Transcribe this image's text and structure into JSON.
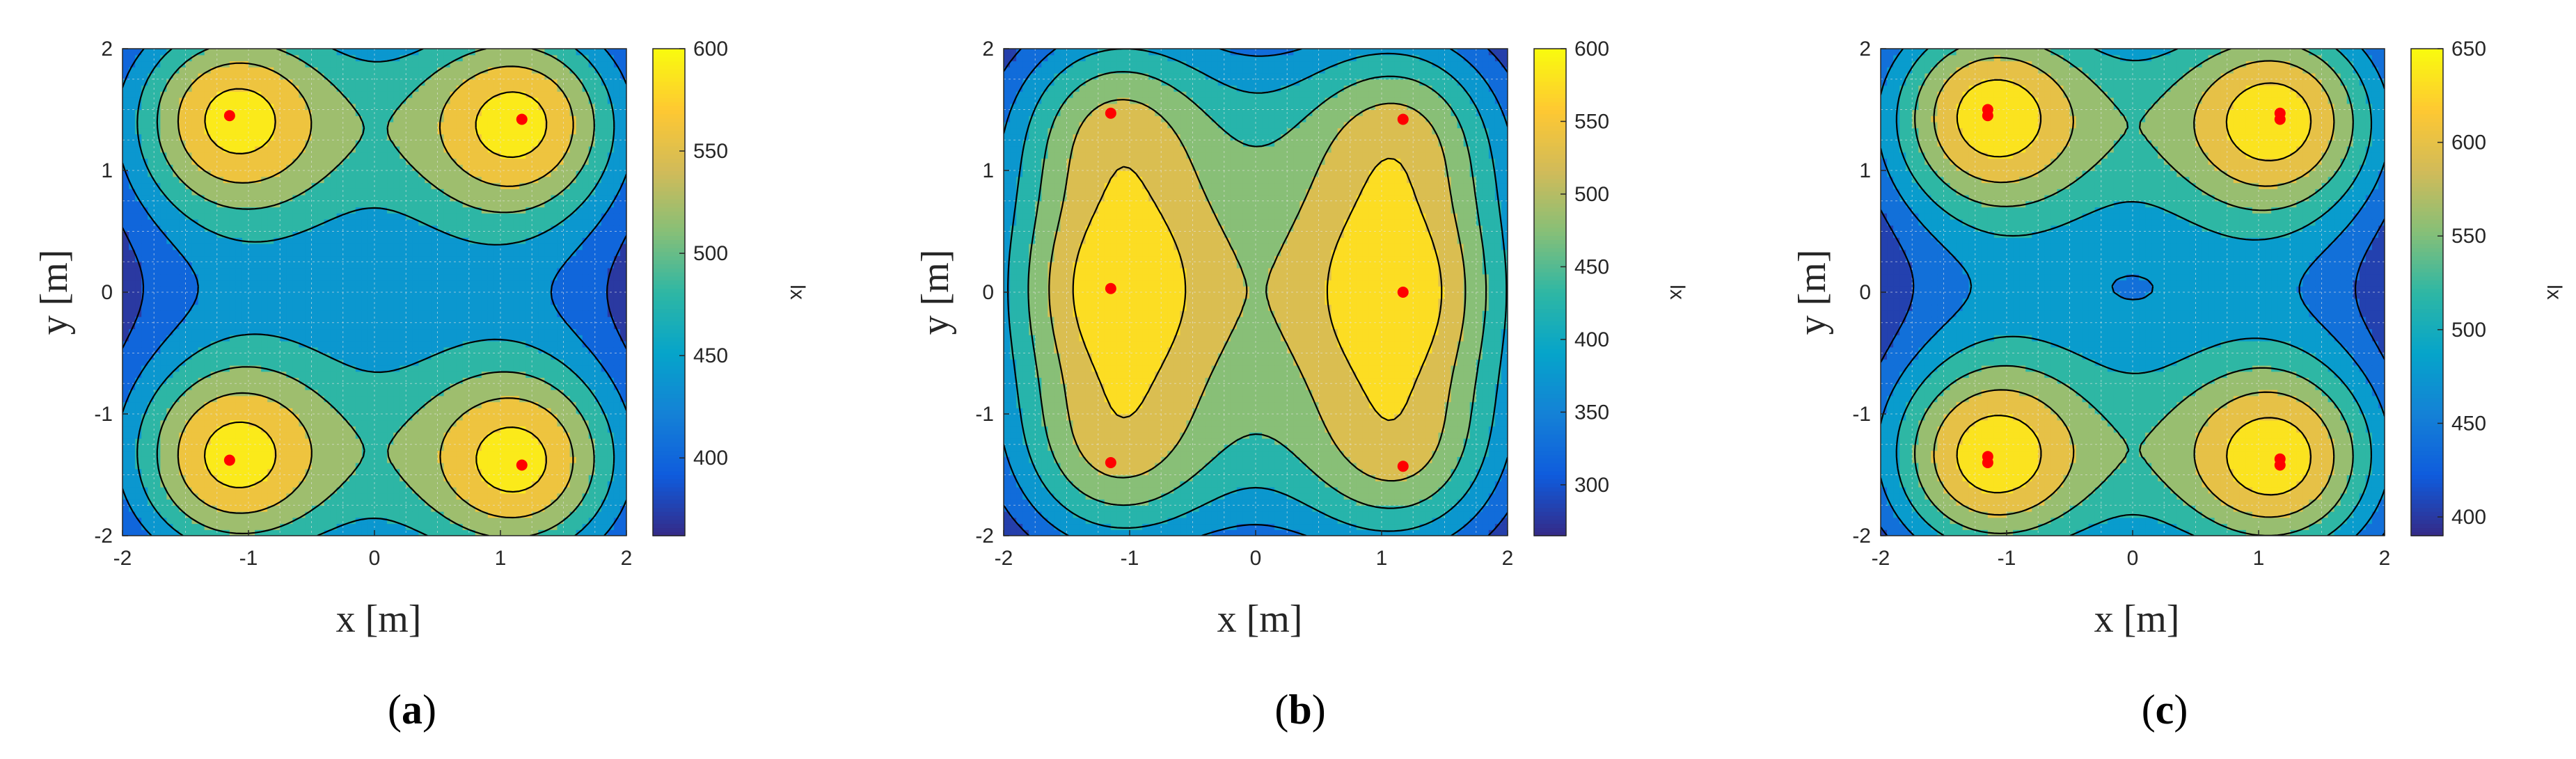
{
  "chart_data": [
    {
      "type": "heatmap",
      "caption": "a",
      "xlabel": "x [m]",
      "ylabel": "y [m]",
      "xlim": [
        -2,
        2
      ],
      "ylim": [
        -2,
        2
      ],
      "xticks": [
        "-2",
        "-1",
        "0",
        "1",
        "2"
      ],
      "yticks": [
        "-2",
        "-1",
        "0",
        "1",
        "2"
      ],
      "grid": true,
      "colorbar": {
        "label": "lx",
        "range": [
          362,
          600
        ],
        "ticks": [
          400,
          450,
          500,
          550,
          600
        ]
      },
      "light_sources": [
        [
          -1.15,
          1.45
        ],
        [
          1.17,
          1.42
        ],
        [
          -1.15,
          -1.38
        ],
        [
          1.17,
          -1.42
        ]
      ],
      "contour_levels": [
        380,
        420,
        460,
        500,
        540,
        580
      ]
    },
    {
      "type": "heatmap",
      "caption": "b",
      "xlabel": "x [m]",
      "ylabel": "y [m]",
      "xlim": [
        -2,
        2
      ],
      "ylim": [
        -2,
        2
      ],
      "xticks": [
        "-2",
        "-1",
        "0",
        "1",
        "2"
      ],
      "yticks": [
        "-2",
        "-1",
        "0",
        "1",
        "2"
      ],
      "grid": true,
      "colorbar": {
        "label": "lx",
        "range": [
          265,
          600
        ],
        "ticks": [
          300,
          350,
          400,
          450,
          500,
          550,
          600
        ]
      },
      "light_sources": [
        [
          -1.15,
          1.47
        ],
        [
          1.17,
          1.42
        ],
        [
          -1.15,
          0.03
        ],
        [
          1.17,
          0.0
        ],
        [
          -1.15,
          -1.4
        ],
        [
          1.17,
          -1.43
        ]
      ],
      "contour_levels": [
        300,
        350,
        400,
        450,
        500,
        550
      ]
    },
    {
      "type": "heatmap",
      "caption": "c",
      "xlabel": "x [m]",
      "ylabel": "y [m]",
      "xlim": [
        -2,
        2
      ],
      "ylim": [
        -2,
        2
      ],
      "xticks": [
        "-2",
        "-1",
        "0",
        "1",
        "2"
      ],
      "yticks": [
        "-2",
        "-1",
        "0",
        "1",
        "2"
      ],
      "grid": true,
      "colorbar": {
        "label": "lx",
        "range": [
          390,
          650
        ],
        "ticks": [
          400,
          450,
          500,
          550,
          600,
          650
        ]
      },
      "light_sources": [
        [
          -1.15,
          1.5
        ],
        [
          -1.15,
          1.45
        ],
        [
          1.17,
          1.47
        ],
        [
          1.17,
          1.42
        ],
        [
          -1.15,
          -1.35
        ],
        [
          -1.15,
          -1.4
        ],
        [
          1.17,
          -1.37
        ],
        [
          1.17,
          -1.42
        ]
      ],
      "contour_levels": [
        420,
        460,
        500,
        540,
        580,
        620
      ]
    }
  ],
  "colors": {
    "parula": [
      "#352a87",
      "#0f5cdd",
      "#1481d6",
      "#06a4ca",
      "#2eb7a4",
      "#87bf77",
      "#d1bb59",
      "#fec832",
      "#f9fb0e"
    ],
    "marker": "#ff0000",
    "contour": "#000000",
    "grid": "#e6e6e6"
  }
}
